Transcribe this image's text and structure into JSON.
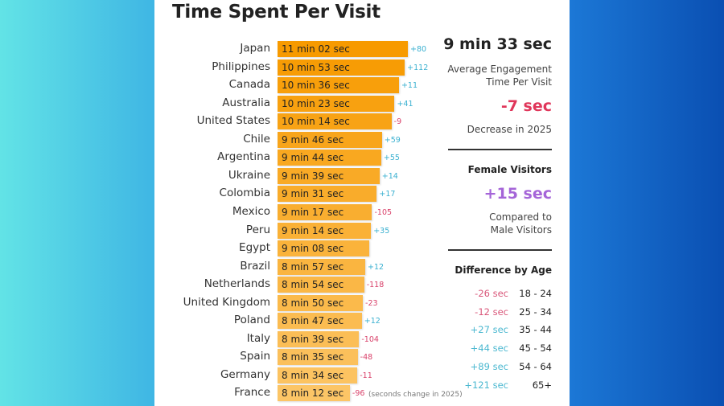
{
  "chart_data": {
    "type": "bar",
    "title": "Time Spent Per Visit",
    "orientation": "horizontal",
    "categories": [
      "Japan",
      "Philippines",
      "Canada",
      "Australia",
      "United States",
      "Chile",
      "Argentina",
      "Ukraine",
      "Colombia",
      "Mexico",
      "Peru",
      "Egypt",
      "Brazil",
      "Netherlands",
      "United Kingdom",
      "Poland",
      "Italy",
      "Spain",
      "Germany",
      "France"
    ],
    "values_seconds": [
      662,
      653,
      636,
      623,
      614,
      586,
      584,
      579,
      571,
      557,
      554,
      548,
      537,
      534,
      530,
      527,
      519,
      515,
      514,
      492
    ],
    "value_labels": [
      "11 min 02 sec",
      "10 min 53 sec",
      "10 min 36 sec",
      "10 min 23 sec",
      "10 min 14 sec",
      "9 min 46 sec",
      "9 min 44 sec",
      "9 min 39 sec",
      "9 min 31 sec",
      "9 min 17 sec",
      "9 min 14 sec",
      "9 min 08 sec",
      "8 min 57 sec",
      "8 min 54 sec",
      "8 min 50 sec",
      "8 min 47 sec",
      "8 min 39 sec",
      "8 min 35 sec",
      "8 min 34 sec",
      "8 min 12 sec"
    ],
    "changes": [
      "+80",
      "+112",
      "+11",
      "+41",
      "-9",
      "+59",
      "+55",
      "+14",
      "+17",
      "-105",
      "+35",
      "",
      "+12",
      "-118",
      "-23",
      "+12",
      "-104",
      "-48",
      "-11",
      "-96"
    ],
    "change_note": "(seconds change in 2025)",
    "colors": {
      "bar_top": "#f79a00",
      "bar_bottom": "#fcc566",
      "positive": "#3ab0d0",
      "negative": "#d9416a"
    }
  },
  "summary": {
    "avg_value": "9 min 33 sec",
    "avg_label_1": "Average Engagement",
    "avg_label_2": "Time Per Visit",
    "change_value": "-7 sec",
    "change_label": "Decrease in 2025",
    "female_title": "Female Visitors",
    "female_value": "+15 sec",
    "female_label_1": "Compared to",
    "female_label_2": "Male Visitors",
    "age_title": "Difference by Age",
    "ages": [
      {
        "diff": "-26 sec",
        "range": "18 - 24"
      },
      {
        "diff": "-12 sec",
        "range": "25 - 34"
      },
      {
        "diff": "+27 sec",
        "range": "35 - 44"
      },
      {
        "diff": "+44 sec",
        "range": "45 - 54"
      },
      {
        "diff": "+89 sec",
        "range": "54 - 64"
      },
      {
        "diff": "+121 sec",
        "range": "65+"
      }
    ],
    "colors": {
      "negative": "#e0365a",
      "female": "#a565d8"
    }
  }
}
